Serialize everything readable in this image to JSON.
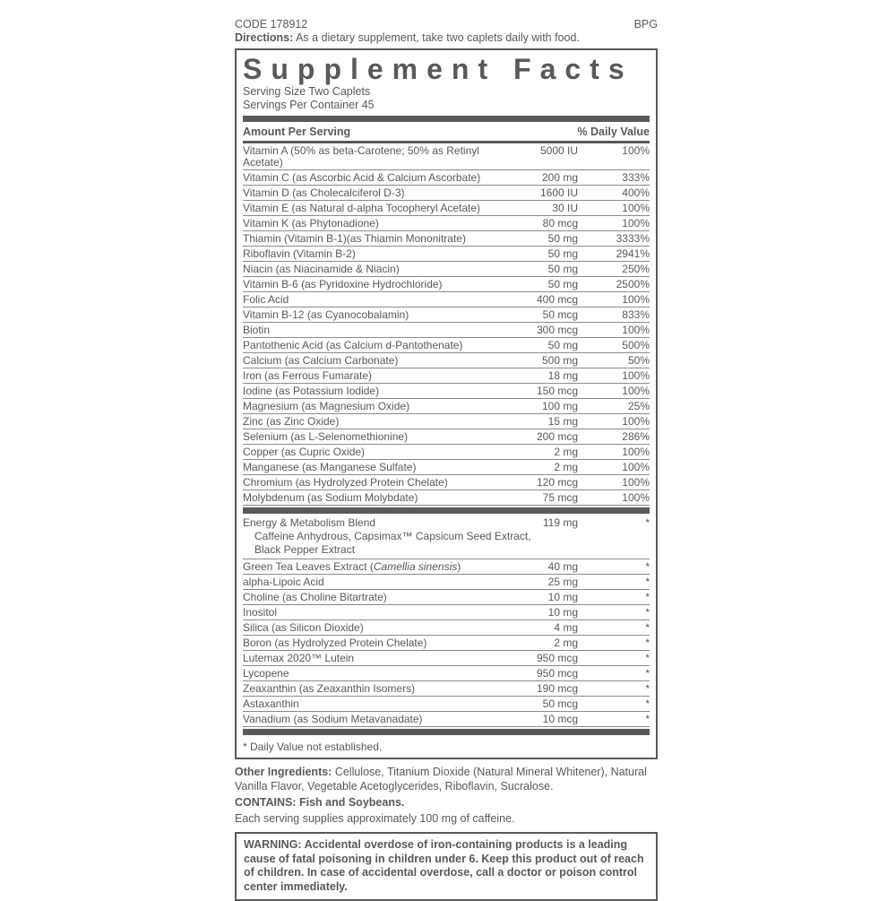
{
  "page": {
    "code": "CODE 178912",
    "bpg": "BPG",
    "directions_label": "Directions:",
    "directions_text": " As a dietary supplement, take two caplets daily with food."
  },
  "supplement_facts": {
    "title": "Supplement Facts",
    "serving_size": "Serving Size Two Caplets",
    "servings_per_container": "Servings Per Container 45",
    "header": {
      "amount_label": "Amount Per Serving",
      "daily_value_label": "% Daily Value"
    },
    "rows": [
      {
        "name": "Vitamin A (50% as beta-Carotene; 50% as Retinyl Acetate)",
        "amount": "5000 IU",
        "dv": "100%"
      },
      {
        "name": "Vitamin C (as Ascorbic Acid & Calcium Ascorbate)",
        "amount": "200 mg",
        "dv": "333%"
      },
      {
        "name": "Vitamin D (as Cholecalciferol D-3)",
        "amount": "1600 IU",
        "dv": "400%"
      },
      {
        "name": "Vitamin E (as Natural d-alpha Tocopheryl Acetate)",
        "amount": "30 IU",
        "dv": "100%"
      },
      {
        "name": "Vitamin K (as Phytonadione)",
        "amount": "80 mcg",
        "dv": "100%"
      },
      {
        "name": "Thiamin (Vitamin B-1)(as Thiamin Mononitrate)",
        "amount": "50 mg",
        "dv": "3333%"
      },
      {
        "name": "Riboflavin (Vitamin B-2)",
        "amount": "50 mg",
        "dv": "2941%"
      },
      {
        "name": "Niacin (as Niacinamide & Niacin)",
        "amount": "50 mg",
        "dv": "250%"
      },
      {
        "name": "Vitamin B-6 (as Pyridoxine Hydrochloride)",
        "amount": "50 mg",
        "dv": "2500%"
      },
      {
        "name": "Folic Acid",
        "amount": "400 mcg",
        "dv": "100%"
      },
      {
        "name": "Vitamin B-12 (as Cyanocobalamin)",
        "amount": "50 mcg",
        "dv": "833%"
      },
      {
        "name": "Biotin",
        "amount": "300 mcg",
        "dv": "100%"
      },
      {
        "name": "Pantothenic Acid (as Calcium d-Pantothenate)",
        "amount": "50 mg",
        "dv": "500%"
      },
      {
        "name": "Calcium (as Calcium Carbonate)",
        "amount": "500 mg",
        "dv": "50%"
      },
      {
        "name": "Iron (as Ferrous Fumarate)",
        "amount": "18 mg",
        "dv": "100%"
      },
      {
        "name": "Iodine (as Potassium Iodide)",
        "amount": "150 mcg",
        "dv": "100%"
      },
      {
        "name": "Magnesium (as Magnesium Oxide)",
        "amount": "100 mg",
        "dv": "25%"
      },
      {
        "name": "Zinc (as Zinc Oxide)",
        "amount": "15 mg",
        "dv": "100%"
      },
      {
        "name": "Selenium (as L-Selenomethionine)",
        "amount": "200 mcg",
        "dv": "286%"
      },
      {
        "name": "Copper (as Cupric Oxide)",
        "amount": "2 mg",
        "dv": "100%"
      },
      {
        "name": "Manganese (as Manganese Sulfate)",
        "amount": "2 mg",
        "dv": "100%"
      },
      {
        "name": "Chromium (as Hydrolyzed Protein Chelate)",
        "amount": "120 mcg",
        "dv": "100%"
      },
      {
        "name": "Molybdenum (as Sodium Molybdate)",
        "amount": "75 mcg",
        "dv": "100%",
        "divider_after": true
      },
      {
        "name": "Energy & Metabolism Blend",
        "amount": "119 mg",
        "dv": "*",
        "sub": [
          "Caffeine Anhydrous, Capsimax™ Capsicum Seed Extract,",
          "Black Pepper Extract"
        ]
      },
      {
        "name_pre": "Green Tea Leaves Extract (",
        "name_it": "Camellia sinensis",
        "name_post": ")",
        "amount": "40 mg",
        "dv": "*"
      },
      {
        "name": "alpha-Lipoic Acid",
        "amount": "25 mg",
        "dv": "*"
      },
      {
        "name": "Choline (as Choline Bitartrate)",
        "amount": "10 mg",
        "dv": "*"
      },
      {
        "name": "Inositol",
        "amount": "10 mg",
        "dv": "*"
      },
      {
        "name": "Silica (as Silicon Dioxide)",
        "amount": "4 mg",
        "dv": "*"
      },
      {
        "name": "Boron (as Hydrolyzed Protein Chelate)",
        "amount": "2 mg",
        "dv": "*"
      },
      {
        "name": "Lutemax 2020™ Lutein",
        "amount": "950 mcg",
        "dv": "*"
      },
      {
        "name": "Lycopene",
        "amount": "950 mcg",
        "dv": "*"
      },
      {
        "name": "Zeaxanthin (as Zeaxanthin Isomers)",
        "amount": "190 mcg",
        "dv": "*"
      },
      {
        "name": "Astaxanthin",
        "amount": "50 mcg",
        "dv": "*"
      },
      {
        "name": "Vanadium (as Sodium Metavanadate)",
        "amount": "10 mcg",
        "dv": "*",
        "divider_after": true
      }
    ],
    "footnote": "* Daily Value not established."
  },
  "other_ingredients": {
    "label": "Other Ingredients:",
    "text": " Cellulose, Titanium Dioxide (Natural Mineral Whitener), Natural Vanilla Flavor, Vegetable Acetoglycerides, Riboflavin, Sucralose."
  },
  "contains_statement": "CONTAINS: Fish and Soybeans.",
  "caffeine_note": "Each serving supplies approximately 100 mg of caffeine.",
  "warning": {
    "label": "WARNING:",
    "text": " Accidental overdose of iron-containing products is a leading cause of fatal poisoning in children under 6. Keep this product out of reach of children. In case of accidental overdose, call a doctor or poison control center immediately."
  },
  "colors": {
    "text": "#58595b",
    "bar": "#58595b",
    "rule": "#8a8b8e",
    "background": "#ffffff"
  }
}
